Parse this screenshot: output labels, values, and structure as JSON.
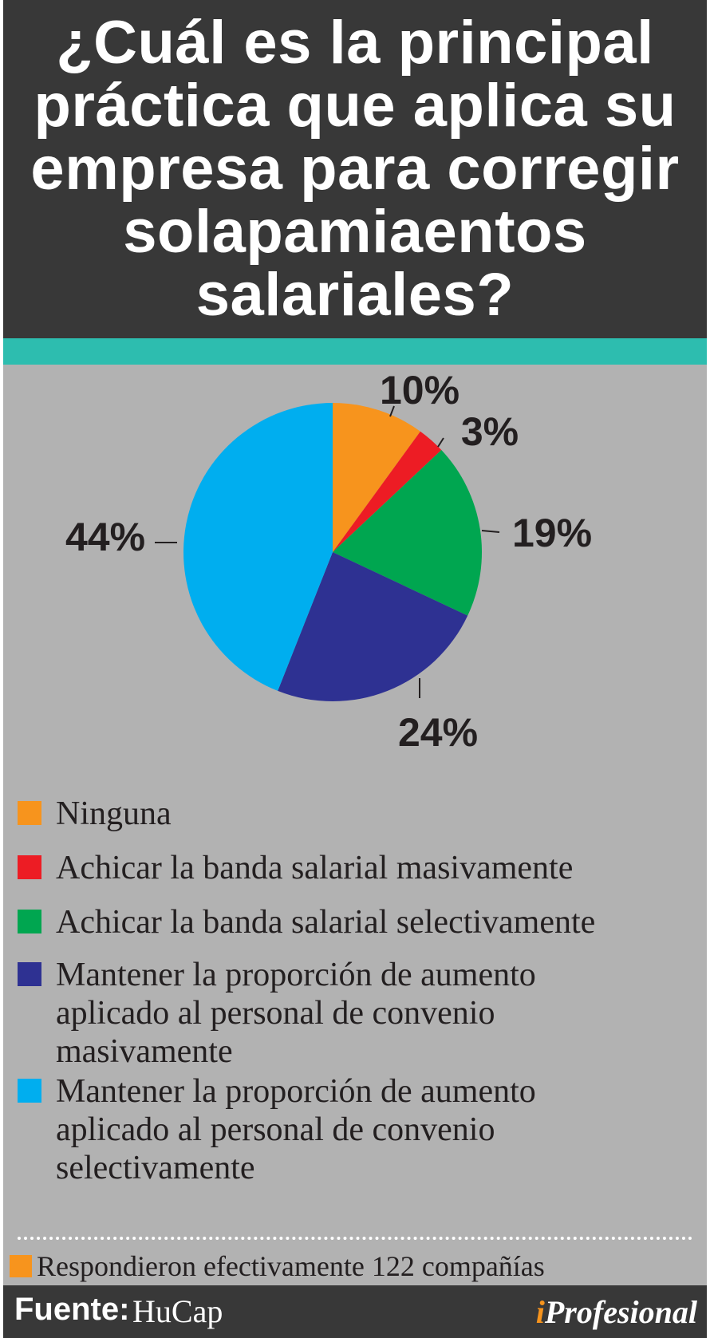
{
  "title_lines": [
    "¿Cuál es la principal",
    "práctica que aplica su",
    "empresa para corregir",
    "solapamiaentos",
    "salariales?"
  ],
  "colors": {
    "header_bg": "#383838",
    "accent_bar": "#2dbdaf",
    "panel_bg": "#b2b2b2",
    "brand_accent": "#f7941d"
  },
  "chart_data": {
    "type": "pie",
    "title": "¿Cuál es la principal práctica que aplica su empresa para corregir solapamiaentos salariales?",
    "start": "12 o'clock",
    "direction": "clockwise",
    "slices": [
      {
        "name": "Ninguna",
        "value": 10,
        "label": "10%",
        "color": "#f7941d"
      },
      {
        "name": "Achicar la banda salarial masivamente",
        "value": 3,
        "label": "3%",
        "color": "#ed1c24"
      },
      {
        "name": "Achicar la banda salarial selectivamente",
        "value": 19,
        "label": "19%",
        "color": "#00a650"
      },
      {
        "name": "Mantener la proporción de aumento\naplicado al personal de convenio\nmasivamente",
        "value": 24,
        "label": "24%",
        "color": "#2e3192"
      },
      {
        "name": "Mantener la proporción de aumento\naplicado al personal de convenio\nselectivamente",
        "value": 44,
        "label": "44%",
        "color": "#00aeef"
      }
    ]
  },
  "note": {
    "text": "Respondieron efectivamente 122 compañías",
    "color": "#f7941d"
  },
  "footer": {
    "source_key": "Fuente:",
    "source_value": "HuCap",
    "brand_i": "i",
    "brand_rest": "Profesional"
  }
}
